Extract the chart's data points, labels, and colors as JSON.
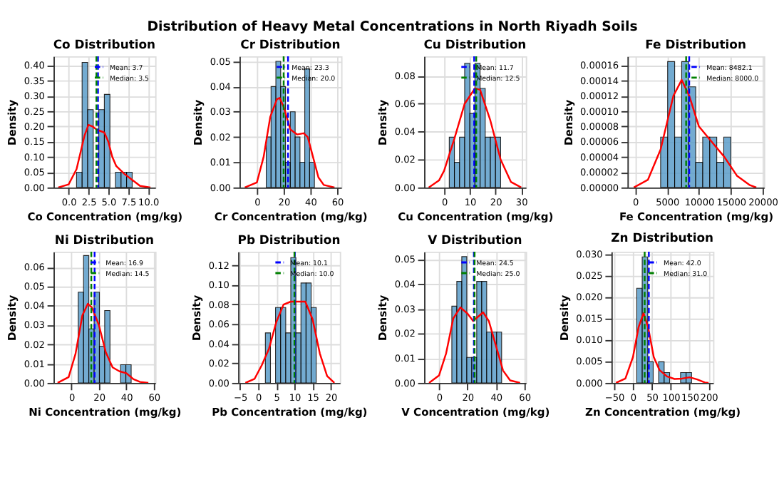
{
  "chart_data": [
    {
      "type": "histogram",
      "annotations": [
        "Distribution of Heavy Metal Concentrations in North Riyadh Soils"
      ],
      "title": "Co Distribution",
      "xlabel": "Co Concentration (mg/kg)",
      "ylabel": "Density",
      "grid": true,
      "legend": "top right",
      "series": [
        {
          "type": "histogram",
          "color": "#5b9dc9",
          "bins": [
            1.0,
            1.7,
            2.4,
            3.1,
            3.8,
            4.5,
            5.2,
            5.9,
            6.6,
            7.3,
            8.0
          ],
          "values": [
            0.05,
            0.41,
            0.255,
            0,
            0.255,
            0.305,
            0,
            0.05,
            0.05,
            0.05
          ]
        },
        {
          "type": "line",
          "color": "#ff0000",
          "x": [
            -1.3,
            0,
            1,
            2,
            2.5,
            3,
            3.5,
            4,
            4.5,
            5,
            5.5,
            6,
            7,
            8,
            9,
            10.3
          ],
          "values": [
            0,
            0.01,
            0.06,
            0.17,
            0.205,
            0.2,
            0.19,
            0.185,
            0.18,
            0.15,
            0.1,
            0.07,
            0.045,
            0.025,
            0.005,
            0
          ]
        }
      ],
      "ref_lines": [
        {
          "axis": "x",
          "value": 3.7,
          "label": "Mean: 3.7",
          "color": "#0000ff",
          "line_style": "dashed"
        },
        {
          "axis": "x",
          "value": 3.5,
          "label": "Median: 3.5",
          "color": "#008000",
          "line_style": "dashed"
        }
      ],
      "xlim": [
        -1.9,
        10.9
      ],
      "xticks": [
        {
          "value": 0,
          "label": "0.0"
        },
        {
          "value": 2.5,
          "label": "2.5"
        },
        {
          "value": 5,
          "label": "5.0"
        },
        {
          "value": 7.5,
          "label": "7.5"
        },
        {
          "value": 10,
          "label": "10.0"
        }
      ],
      "ylim": [
        0,
        0.43
      ],
      "yticks": [
        {
          "value": 0,
          "label": "0.00"
        },
        {
          "value": 0.05,
          "label": "0.05"
        },
        {
          "value": 0.1,
          "label": "0.10"
        },
        {
          "value": 0.15,
          "label": "0.15"
        },
        {
          "value": 0.2,
          "label": "0.20"
        },
        {
          "value": 0.25,
          "label": "0.25"
        },
        {
          "value": 0.3,
          "label": "0.30"
        },
        {
          "value": 0.35,
          "label": "0.35"
        },
        {
          "value": 0.4,
          "label": "0.40"
        }
      ]
    },
    {
      "type": "histogram",
      "title": "Cr Distribution",
      "xlabel": "Cr Concentration (mg/kg)",
      "ylabel": "Density",
      "grid": true,
      "legend": "top right",
      "series": [
        {
          "type": "histogram",
          "color": "#5b9dc9",
          "bins": [
            7,
            10.6,
            14.2,
            17.8,
            21.4,
            25,
            28.6,
            32.2,
            35.8,
            39.4,
            43
          ],
          "values": [
            0.02,
            0.04,
            0.05,
            0.04,
            0.01,
            0.03,
            0.02,
            0.01,
            0.047,
            0.01
          ]
        },
        {
          "type": "line",
          "color": "#ff0000",
          "x": [
            -9,
            0,
            5,
            10,
            15,
            17,
            20,
            25,
            30,
            35,
            38,
            42,
            46,
            50,
            58
          ],
          "values": [
            0,
            0.002,
            0.012,
            0.028,
            0.035,
            0.0355,
            0.032,
            0.023,
            0.021,
            0.0215,
            0.02,
            0.012,
            0.004,
            0.001,
            0
          ]
        }
      ],
      "ref_lines": [
        {
          "axis": "x",
          "value": 23.3,
          "label": "Mean: 23.3",
          "color": "#0000ff",
          "line_style": "dashed"
        },
        {
          "axis": "x",
          "value": 20.0,
          "label": "Median: 20.0",
          "color": "#008000",
          "line_style": "dashed"
        }
      ],
      "xlim": [
        -13,
        63
      ],
      "xticks": [
        0,
        20,
        40,
        60
      ],
      "ylim": [
        0,
        0.052
      ],
      "yticks": [
        {
          "value": 0,
          "label": "0.00"
        },
        {
          "value": 0.01,
          "label": "0.01"
        },
        {
          "value": 0.02,
          "label": "0.02"
        },
        {
          "value": 0.03,
          "label": "0.03"
        },
        {
          "value": 0.04,
          "label": "0.04"
        },
        {
          "value": 0.05,
          "label": "0.05"
        }
      ]
    },
    {
      "type": "histogram",
      "title": "Cu Distribution",
      "xlabel": "Cu Concentration (mg/kg)",
      "ylabel": "Density",
      "grid": true,
      "legend": "top right",
      "series": [
        {
          "type": "histogram",
          "color": "#5b9dc9",
          "bins": [
            2,
            4,
            6,
            8,
            10,
            12,
            14,
            16,
            18,
            20,
            22
          ],
          "values": [
            0.036,
            0.018,
            0.036,
            0.089,
            0.053,
            0.089,
            0.071,
            0.036,
            0.036,
            0.036
          ]
        },
        {
          "type": "line",
          "color": "#ff0000",
          "x": [
            -6,
            -2,
            0,
            4,
            8,
            12,
            14,
            18,
            22,
            26,
            30
          ],
          "values": [
            0,
            0.005,
            0.012,
            0.035,
            0.06,
            0.071,
            0.07,
            0.048,
            0.02,
            0.004,
            0
          ]
        }
      ],
      "ref_lines": [
        {
          "axis": "x",
          "value": 11.7,
          "label": "Mean: 11.7",
          "color": "#0000ff",
          "line_style": "dashed"
        },
        {
          "axis": "x",
          "value": 12.5,
          "label": "Median: 12.5",
          "color": "#008000",
          "line_style": "dashed"
        }
      ],
      "xlim": [
        -7.8,
        31.8
      ],
      "xticks": [
        0,
        10,
        20,
        30
      ],
      "ylim": [
        0,
        0.094
      ],
      "yticks": [
        {
          "value": 0,
          "label": "0.00"
        },
        {
          "value": 0.02,
          "label": "0.02"
        },
        {
          "value": 0.04,
          "label": "0.04"
        },
        {
          "value": 0.06,
          "label": "0.06"
        },
        {
          "value": 0.08,
          "label": "0.08"
        }
      ]
    },
    {
      "type": "histogram",
      "title": "Fe Distribution",
      "xlabel": "Fe Concentration (mg/kg)",
      "ylabel": "Density",
      "grid": true,
      "legend": "top right",
      "series": [
        {
          "type": "histogram",
          "color": "#5b9dc9",
          "bins": [
            4000,
            5100,
            6200,
            7300,
            8400,
            9500,
            10600,
            11700,
            12800,
            13900,
            15000
          ],
          "values": [
            6.6e-05,
            0.000165,
            6.6e-05,
            0.000165,
            0.000132,
            3.3e-05,
            6.6e-05,
            6.6e-05,
            3.3e-05,
            6.6e-05
          ]
        },
        {
          "type": "line",
          "color": "#ff0000",
          "x": [
            -200,
            2000,
            4000,
            6000,
            7300,
            8500,
            10000,
            12000,
            14000,
            16000,
            18000,
            19000
          ],
          "values": [
            0,
            1e-05,
            5e-05,
            0.00012,
            0.000141,
            0.00012,
            8e-05,
            6e-05,
            4e-05,
            1.5e-05,
            3e-06,
            0
          ]
        }
      ],
      "ref_lines": [
        {
          "axis": "x",
          "value": 8482.1,
          "label": "Mean: 8482.1",
          "color": "#0000ff",
          "line_style": "dashed"
        },
        {
          "axis": "x",
          "value": 8000.0,
          "label": "Median: 8000.0",
          "color": "#008000",
          "line_style": "dashed"
        }
      ],
      "xlim": [
        -1200,
        20200
      ],
      "xticks": [
        0,
        5000,
        10000,
        15000,
        20000
      ],
      "ylim": [
        0,
        0.000172
      ],
      "yticks": [
        {
          "value": 0,
          "label": "0.00000"
        },
        {
          "value": 2e-05,
          "label": "0.00002"
        },
        {
          "value": 4e-05,
          "label": "0.00004"
        },
        {
          "value": 6e-05,
          "label": "0.00006"
        },
        {
          "value": 8e-05,
          "label": "0.00008"
        },
        {
          "value": 0.0001,
          "label": "0.00010"
        },
        {
          "value": 0.00012,
          "label": "0.00012"
        },
        {
          "value": 0.00014,
          "label": "0.00014"
        },
        {
          "value": 0.00016,
          "label": "0.00016"
        }
      ]
    },
    {
      "type": "histogram",
      "title": "Ni Distribution",
      "xlabel": "Ni Concentration (mg/kg)",
      "ylabel": "Density",
      "grid": true,
      "legend": "top right",
      "series": [
        {
          "type": "histogram",
          "color": "#5b9dc9",
          "bins": [
            5,
            8.85,
            12.7,
            16.55,
            20.4,
            24.25,
            28.1,
            31.95,
            35.8,
            39.65,
            43.5
          ],
          "values": [
            0.047,
            0.066,
            0.028,
            0.047,
            0.019,
            0.0375,
            0,
            0,
            0.0094,
            0.0094
          ]
        },
        {
          "type": "line",
          "color": "#ff0000",
          "x": [
            -10,
            -2,
            3,
            8,
            12,
            15,
            20,
            25,
            30,
            35,
            40,
            45,
            50,
            56
          ],
          "values": [
            0,
            0.003,
            0.015,
            0.035,
            0.041,
            0.039,
            0.03,
            0.016,
            0.008,
            0.006,
            0.005,
            0.002,
            0.0005,
            0
          ]
        }
      ],
      "ref_lines": [
        {
          "axis": "x",
          "value": 16.9,
          "label": "Mean: 16.9",
          "color": "#0000ff",
          "line_style": "dashed"
        },
        {
          "axis": "x",
          "value": 14.5,
          "label": "Median: 14.5",
          "color": "#008000",
          "line_style": "dashed"
        }
      ],
      "xlim": [
        -13,
        61
      ],
      "xticks": [
        0,
        20,
        40,
        60
      ],
      "ylim": [
        0,
        0.068
      ],
      "yticks": [
        {
          "value": 0,
          "label": "0.00"
        },
        {
          "value": 0.01,
          "label": "0.01"
        },
        {
          "value": 0.02,
          "label": "0.02"
        },
        {
          "value": 0.03,
          "label": "0.03"
        },
        {
          "value": 0.04,
          "label": "0.04"
        },
        {
          "value": 0.05,
          "label": "0.05"
        },
        {
          "value": 0.06,
          "label": "0.06"
        }
      ]
    },
    {
      "type": "histogram",
      "title": "Pb Distribution",
      "xlabel": "Pb Concentration (mg/kg)",
      "ylabel": "Density",
      "grid": true,
      "legend": "top right",
      "series": [
        {
          "type": "histogram",
          "color": "#5b9dc9",
          "bins": [
            2,
            3.4,
            4.8,
            6.2,
            7.6,
            9,
            10.4,
            11.8,
            13.2,
            14.6,
            16
          ],
          "values": [
            0.051,
            0,
            0.077,
            0.077,
            0.051,
            0.128,
            0.051,
            0.102,
            0.102,
            0.077
          ]
        },
        {
          "type": "line",
          "color": "#ff0000",
          "x": [
            -3.5,
            -1,
            1,
            3,
            5,
            7,
            9,
            11,
            13,
            15,
            17,
            19,
            21
          ],
          "values": [
            0,
            0.004,
            0.018,
            0.035,
            0.062,
            0.08,
            0.083,
            0.083,
            0.083,
            0.065,
            0.03,
            0.007,
            0
          ]
        }
      ],
      "ref_lines": [
        {
          "axis": "x",
          "value": 10.1,
          "label": "Mean: 10.1",
          "color": "#0000ff",
          "line_style": "dashed"
        },
        {
          "axis": "x",
          "value": 10.0,
          "label": "Median: 10.0",
          "color": "#008000",
          "line_style": "dashed"
        }
      ],
      "xlim": [
        -5.5,
        22.5
      ],
      "xticks": [
        {
          "value": -5,
          "label": "−5"
        },
        0,
        5,
        10,
        15,
        20
      ],
      "ylim": [
        0,
        0.134
      ],
      "yticks": [
        {
          "value": 0,
          "label": "0.00"
        },
        {
          "value": 0.02,
          "label": "0.02"
        },
        {
          "value": 0.04,
          "label": "0.04"
        },
        {
          "value": 0.06,
          "label": "0.06"
        },
        {
          "value": 0.08,
          "label": "0.08"
        },
        {
          "value": 0.1,
          "label": "0.10"
        },
        {
          "value": 0.12,
          "label": "0.12"
        }
      ]
    },
    {
      "type": "histogram",
      "title": "V Distribution",
      "xlabel": "V Concentration (mg/kg)",
      "ylabel": "Density",
      "grid": true,
      "legend": "top right",
      "series": [
        {
          "type": "histogram",
          "color": "#5b9dc9",
          "bins": [
            9,
            12.5,
            16,
            19.5,
            23,
            26.5,
            30,
            33.5,
            37,
            40.5,
            44
          ],
          "values": [
            0.031,
            0.041,
            0.051,
            0.0103,
            0.0103,
            0.041,
            0.041,
            0.0205,
            0.0205,
            0.0205
          ]
        },
        {
          "type": "line",
          "color": "#ff0000",
          "x": [
            -7,
            0,
            5,
            10,
            15,
            20,
            24,
            28,
            31,
            35,
            40,
            45,
            50,
            57
          ],
          "values": [
            0,
            0.003,
            0.012,
            0.026,
            0.0305,
            0.028,
            0.025,
            0.027,
            0.0285,
            0.025,
            0.015,
            0.005,
            0.001,
            0
          ]
        }
      ],
      "ref_lines": [
        {
          "axis": "x",
          "value": 24.5,
          "label": "Mean: 24.5",
          "color": "#0000ff",
          "line_style": "dashed"
        },
        {
          "axis": "x",
          "value": 25.0,
          "label": "Median: 25.0",
          "color": "#008000",
          "line_style": "dashed"
        }
      ],
      "xlim": [
        -10.5,
        61
      ],
      "xticks": [
        0,
        20,
        40,
        60
      ],
      "ylim": [
        0,
        0.053
      ],
      "yticks": [
        {
          "value": 0,
          "label": "0.00"
        },
        {
          "value": 0.01,
          "label": "0.01"
        },
        {
          "value": 0.02,
          "label": "0.02"
        },
        {
          "value": 0.03,
          "label": "0.03"
        },
        {
          "value": 0.04,
          "label": "0.04"
        },
        {
          "value": 0.05,
          "label": "0.05"
        }
      ]
    },
    {
      "type": "histogram",
      "title": "Zn Distribution",
      "xlabel": "Zn Concentration (mg/kg)",
      "ylabel": "Density",
      "grid": true,
      "legend": "top right",
      "series": [
        {
          "type": "histogram",
          "color": "#5b9dc9",
          "bins": [
            10,
            24.5,
            39,
            53.5,
            68,
            82.5,
            97,
            111.5,
            126,
            140.5,
            155
          ],
          "values": [
            0.022,
            0.0293,
            0.0049,
            0,
            0.0049,
            0.0024,
            0,
            0,
            0.0024,
            0.0024
          ]
        },
        {
          "type": "line",
          "color": "#ff0000",
          "x": [
            -45,
            -20,
            0,
            15,
            28,
            40,
            55,
            70,
            90,
            110,
            130,
            150,
            170,
            190,
            200
          ],
          "values": [
            0,
            0.001,
            0.006,
            0.013,
            0.0162,
            0.013,
            0.006,
            0.003,
            0.0015,
            0.0009,
            0.001,
            0.0013,
            0.0008,
            0.0001,
            0
          ]
        }
      ],
      "ref_lines": [
        {
          "axis": "x",
          "value": 42.0,
          "label": "Mean: 42.0",
          "color": "#0000ff",
          "line_style": "dashed"
        },
        {
          "axis": "x",
          "value": 31.0,
          "label": "Median: 31.0",
          "color": "#008000",
          "line_style": "dashed"
        }
      ],
      "xlim": [
        -57,
        212
      ],
      "xticks": [
        {
          "value": -50,
          "label": "−50"
        },
        0,
        50,
        100,
        150,
        200
      ],
      "ylim": [
        0,
        0.0305
      ],
      "yticks": [
        {
          "value": 0,
          "label": "0.000"
        },
        {
          "value": 0.005,
          "label": "0.005"
        },
        {
          "value": 0.01,
          "label": "0.010"
        },
        {
          "value": 0.015,
          "label": "0.015"
        },
        {
          "value": 0.02,
          "label": "0.020"
        },
        {
          "value": 0.025,
          "label": "0.025"
        },
        {
          "value": 0.03,
          "label": "0.030"
        }
      ]
    }
  ]
}
